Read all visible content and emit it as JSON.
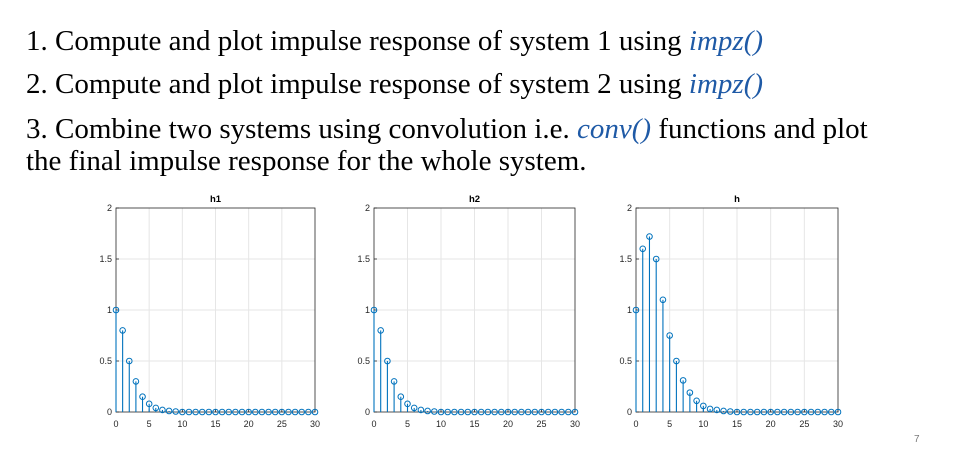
{
  "tasks": [
    {
      "prefix": "1. Compute and plot impulse response of system 1 using ",
      "fn": "impz()",
      "suffix": ""
    },
    {
      "prefix": "2. Compute and plot impulse response of system 2 using ",
      "fn": "impz()",
      "suffix": ""
    },
    {
      "prefix": "3. Combine two systems using convolution i.e. ",
      "fn": "conv()",
      "suffix": " functions and plot"
    },
    {
      "text": "the final impulse response for the whole system."
    }
  ],
  "page_number": "7",
  "colors": {
    "stem": "#0072bd",
    "grid": "#e6e6e6",
    "axis": "#262626",
    "fn_text": "#1f5aa6"
  },
  "chart_data": [
    {
      "type": "stem",
      "title": "h1",
      "xlabel": "",
      "ylabel": "",
      "xlim": [
        0,
        30
      ],
      "ylim": [
        0,
        2
      ],
      "xticks": [
        0,
        5,
        10,
        15,
        20,
        25,
        30
      ],
      "yticks": [
        0,
        0.5,
        1,
        1.5,
        2
      ],
      "ytick_labels": [
        "0",
        "0.5",
        "1",
        "1.5",
        "2"
      ],
      "grid": true,
      "x": [
        0,
        1,
        2,
        3,
        4,
        5,
        6,
        7,
        8,
        9,
        10,
        11,
        12,
        13,
        14,
        15,
        16,
        17,
        18,
        19,
        20,
        21,
        22,
        23,
        24,
        25,
        26,
        27,
        28,
        29,
        30
      ],
      "values": [
        1.0,
        0.8,
        0.5,
        0.3,
        0.15,
        0.08,
        0.04,
        0.02,
        0.01,
        0.005,
        0,
        0,
        0,
        0,
        0,
        0,
        0,
        0,
        0,
        0,
        0,
        0,
        0,
        0,
        0,
        0,
        0,
        0,
        0,
        0,
        0
      ]
    },
    {
      "type": "stem",
      "title": "h2",
      "xlabel": "",
      "ylabel": "",
      "xlim": [
        0,
        30
      ],
      "ylim": [
        0,
        2
      ],
      "xticks": [
        0,
        5,
        10,
        15,
        20,
        25,
        30
      ],
      "yticks": [
        0,
        0.5,
        1,
        1.5,
        2
      ],
      "ytick_labels": [
        "0",
        "0.5",
        "1",
        "1.5",
        "2"
      ],
      "grid": true,
      "x": [
        0,
        1,
        2,
        3,
        4,
        5,
        6,
        7,
        8,
        9,
        10,
        11,
        12,
        13,
        14,
        15,
        16,
        17,
        18,
        19,
        20,
        21,
        22,
        23,
        24,
        25,
        26,
        27,
        28,
        29,
        30
      ],
      "values": [
        1.0,
        0.8,
        0.5,
        0.3,
        0.15,
        0.08,
        0.04,
        0.02,
        0.01,
        0.005,
        0,
        0,
        0,
        0,
        0,
        0,
        0,
        0,
        0,
        0,
        0,
        0,
        0,
        0,
        0,
        0,
        0,
        0,
        0,
        0,
        0
      ]
    },
    {
      "type": "stem",
      "title": "h",
      "xlabel": "",
      "ylabel": "",
      "xlim": [
        0,
        30
      ],
      "ylim": [
        0,
        2
      ],
      "xticks": [
        0,
        5,
        10,
        15,
        20,
        25,
        30
      ],
      "yticks": [
        0,
        0.5,
        1,
        1.5,
        2
      ],
      "ytick_labels": [
        "0",
        "0.5",
        "1",
        "1.5",
        "2"
      ],
      "grid": true,
      "x": [
        0,
        1,
        2,
        3,
        4,
        5,
        6,
        7,
        8,
        9,
        10,
        11,
        12,
        13,
        14,
        15,
        16,
        17,
        18,
        19,
        20,
        21,
        22,
        23,
        24,
        25,
        26,
        27,
        28,
        29,
        30
      ],
      "values": [
        1.0,
        1.6,
        1.72,
        1.5,
        1.1,
        0.75,
        0.5,
        0.31,
        0.19,
        0.11,
        0.06,
        0.03,
        0.02,
        0.01,
        0.005,
        0,
        0,
        0,
        0,
        0,
        0,
        0,
        0,
        0,
        0,
        0,
        0,
        0,
        0,
        0,
        0
      ]
    }
  ]
}
